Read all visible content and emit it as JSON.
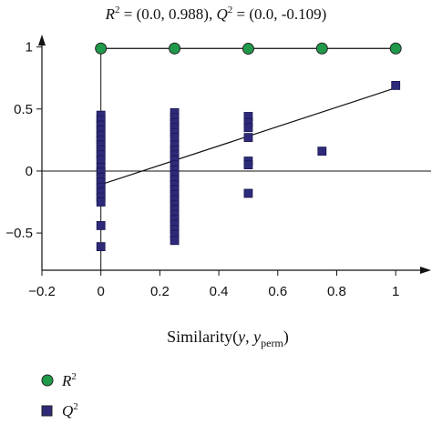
{
  "chart_data": {
    "type": "scatter",
    "title": {
      "r2_sym": "R",
      "r2_exp": "2",
      "r2_value": " = (0.0, 0.988), ",
      "q2_sym": "Q",
      "q2_exp": "2",
      "q2_value": " = (0.0, -0.109)"
    },
    "xlabel": {
      "prefix": "Similarity(",
      "y": "y",
      "sep": ", ",
      "y2": "y",
      "sub": "perm",
      "suffix": ")"
    },
    "xlim": [
      -0.2,
      1.12
    ],
    "ylim": [
      -0.8,
      1.1
    ],
    "xticks": [
      -0.2,
      0,
      0.2,
      0.4,
      0.6,
      0.8,
      1
    ],
    "xtick_labels": [
      "−0.2",
      "0",
      "0.2",
      "0.4",
      "0.6",
      "0.8",
      "1"
    ],
    "yticks": [
      -0.5,
      0,
      0.5,
      1
    ],
    "ytick_labels": [
      "−0.5",
      "0",
      "0.5",
      "1"
    ],
    "series": [
      {
        "name": "R2",
        "legend_sym": "R",
        "legend_exp": "2",
        "marker": "circle",
        "color": "#1f9a4a",
        "points": [
          {
            "x": 0,
            "y": 0.988
          },
          {
            "x": 0.25,
            "y": 0.988
          },
          {
            "x": 0.5,
            "y": 0.986
          },
          {
            "x": 0.75,
            "y": 0.988
          },
          {
            "x": 1,
            "y": 0.988
          }
        ],
        "regression": {
          "x": [
            0,
            1
          ],
          "y": [
            0.988,
            0.988
          ]
        }
      },
      {
        "name": "Q2",
        "legend_sym": "Q",
        "legend_exp": "2",
        "marker": "square",
        "color": "#2e2a7a",
        "points": [
          {
            "x": 0,
            "y": 0.45
          },
          {
            "x": 0,
            "y": 0.41
          },
          {
            "x": 0,
            "y": 0.37
          },
          {
            "x": 0,
            "y": 0.33
          },
          {
            "x": 0,
            "y": 0.29
          },
          {
            "x": 0,
            "y": 0.25
          },
          {
            "x": 0,
            "y": 0.21
          },
          {
            "x": 0,
            "y": 0.17
          },
          {
            "x": 0,
            "y": 0.13
          },
          {
            "x": 0,
            "y": 0.09
          },
          {
            "x": 0,
            "y": 0.03
          },
          {
            "x": 0,
            "y": -0.01
          },
          {
            "x": 0,
            "y": -0.05
          },
          {
            "x": 0,
            "y": -0.09
          },
          {
            "x": 0,
            "y": -0.13
          },
          {
            "x": 0,
            "y": -0.17
          },
          {
            "x": 0,
            "y": -0.21
          },
          {
            "x": 0,
            "y": -0.25
          },
          {
            "x": 0,
            "y": -0.44
          },
          {
            "x": 0,
            "y": -0.61
          },
          {
            "x": 0.25,
            "y": 0.47
          },
          {
            "x": 0.25,
            "y": 0.43
          },
          {
            "x": 0.25,
            "y": 0.39
          },
          {
            "x": 0.25,
            "y": 0.35
          },
          {
            "x": 0.25,
            "y": 0.31
          },
          {
            "x": 0.25,
            "y": 0.27
          },
          {
            "x": 0.25,
            "y": 0.21
          },
          {
            "x": 0.25,
            "y": 0.17
          },
          {
            "x": 0.25,
            "y": 0.13
          },
          {
            "x": 0.25,
            "y": 0.09
          },
          {
            "x": 0.25,
            "y": 0.05
          },
          {
            "x": 0.25,
            "y": 0.01
          },
          {
            "x": 0.25,
            "y": -0.03
          },
          {
            "x": 0.25,
            "y": -0.07
          },
          {
            "x": 0.25,
            "y": -0.11
          },
          {
            "x": 0.25,
            "y": -0.15
          },
          {
            "x": 0.25,
            "y": -0.19
          },
          {
            "x": 0.25,
            "y": -0.23
          },
          {
            "x": 0.25,
            "y": -0.27
          },
          {
            "x": 0.25,
            "y": -0.31
          },
          {
            "x": 0.25,
            "y": -0.35
          },
          {
            "x": 0.25,
            "y": -0.39
          },
          {
            "x": 0.25,
            "y": -0.43
          },
          {
            "x": 0.25,
            "y": -0.47
          },
          {
            "x": 0.25,
            "y": -0.51
          },
          {
            "x": 0.25,
            "y": -0.56
          },
          {
            "x": 0.5,
            "y": 0.44
          },
          {
            "x": 0.5,
            "y": 0.39
          },
          {
            "x": 0.5,
            "y": 0.35
          },
          {
            "x": 0.5,
            "y": 0.27
          },
          {
            "x": 0.5,
            "y": 0.08
          },
          {
            "x": 0.5,
            "y": 0.05
          },
          {
            "x": 0.5,
            "y": -0.18
          },
          {
            "x": 0.75,
            "y": 0.16
          },
          {
            "x": 1,
            "y": 0.69
          }
        ],
        "regression": {
          "x": [
            0,
            1
          ],
          "y": [
            -0.109,
            0.67
          ]
        }
      }
    ],
    "grid": false,
    "legend_position": "bottom-left"
  }
}
